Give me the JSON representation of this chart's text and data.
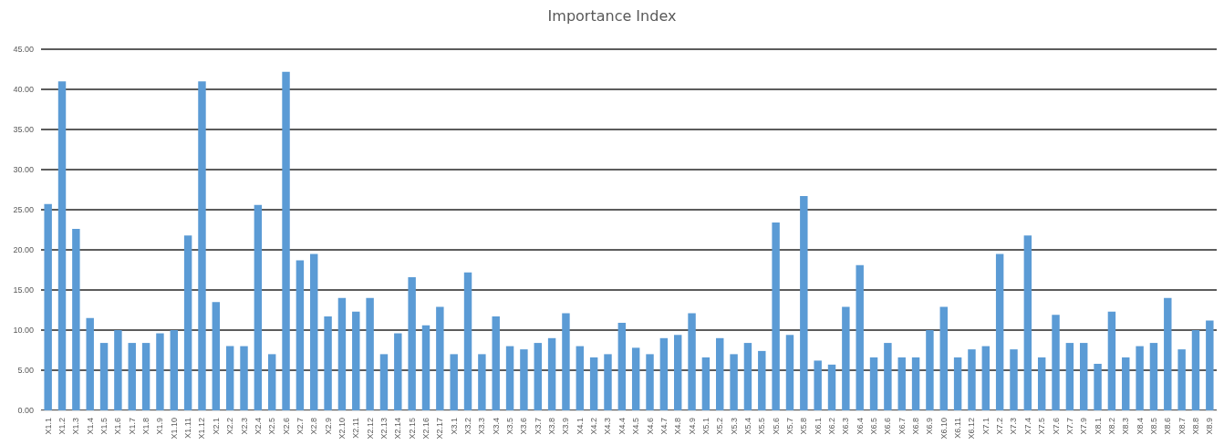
{
  "chart_data": {
    "type": "bar",
    "title": "Importance Index",
    "categories": [
      "X1.1",
      "X1.2",
      "X1.3",
      "X1.4",
      "X1.5",
      "X1.6",
      "X1.7",
      "X1.8",
      "X1.9",
      "X1.10",
      "X1.11",
      "X1.12",
      "X2.1",
      "X2.2",
      "X2.3",
      "X2.4",
      "X2.5",
      "X2.6",
      "X2.7",
      "X2.8",
      "X2.9",
      "X2.10",
      "X2.11",
      "X2.12",
      "X2.13",
      "X2.14",
      "X2.15",
      "X2.16",
      "X2.17",
      "X3.1",
      "X3.2",
      "X3.3",
      "X3.4",
      "X3.5",
      "X3.6",
      "X3.7",
      "X3.8",
      "X3.9",
      "X4.1",
      "X4.2",
      "X4.3",
      "X4.4",
      "X4.5",
      "X4.6",
      "X4.7",
      "X4.8",
      "X4.9",
      "X5.1",
      "X5.2",
      "X5.3",
      "X5.4",
      "X5.5",
      "X5.6",
      "X5.7",
      "X5.8",
      "X6.1",
      "X6.2",
      "X6.3",
      "X6.4",
      "X6.5",
      "X6.6",
      "X6.7",
      "X6.8",
      "X6.9",
      "X6.10",
      "X6.11",
      "X6.12",
      "X7.1",
      "X7.2",
      "X7.3",
      "X7.4",
      "X7.5",
      "X7.6",
      "X7.7",
      "X7.9",
      "X8.1",
      "X8.2",
      "X8.3",
      "X8.4",
      "X8.5",
      "X8.6",
      "X8.7",
      "X8.8",
      "X8.9"
    ],
    "values": [
      25.7,
      41.0,
      22.6,
      11.5,
      8.4,
      10.0,
      8.4,
      8.4,
      9.6,
      10.0,
      21.8,
      41.0,
      13.5,
      8.0,
      8.0,
      25.6,
      7.0,
      42.2,
      18.7,
      19.5,
      11.7,
      14.0,
      12.3,
      14.0,
      7.0,
      9.6,
      16.6,
      10.6,
      12.9,
      7.0,
      17.2,
      7.0,
      11.7,
      8.0,
      7.6,
      8.4,
      9.0,
      12.1,
      8.0,
      6.6,
      7.0,
      10.9,
      7.8,
      7.0,
      9.0,
      9.4,
      12.1,
      6.6,
      9.0,
      7.0,
      8.4,
      7.4,
      23.4,
      9.4,
      26.7,
      6.2,
      5.7,
      12.9,
      18.1,
      6.6,
      8.4,
      6.6,
      6.6,
      10.0,
      12.9,
      6.6,
      7.6,
      8.0,
      19.5,
      7.6,
      21.8,
      6.6,
      11.9,
      8.4,
      8.4,
      5.8,
      12.3,
      6.6,
      8.0,
      8.4,
      14.0,
      7.6,
      10.0,
      11.2
    ],
    "color": "#5b9bd5",
    "ylim": [
      0,
      45
    ],
    "yticks": [
      {
        "value": 0,
        "label": "0.00"
      },
      {
        "value": 5,
        "label": "5.00"
      },
      {
        "value": 10,
        "label": "10.00"
      },
      {
        "value": 15,
        "label": "15.00"
      },
      {
        "value": 20,
        "label": "20.00"
      },
      {
        "value": 25,
        "label": "25.00"
      },
      {
        "value": 30,
        "label": "30.00"
      },
      {
        "value": 35,
        "label": "35.00"
      },
      {
        "value": 40,
        "label": "40.00"
      },
      {
        "value": 45,
        "label": "45.00"
      }
    ],
    "grid": "y"
  }
}
